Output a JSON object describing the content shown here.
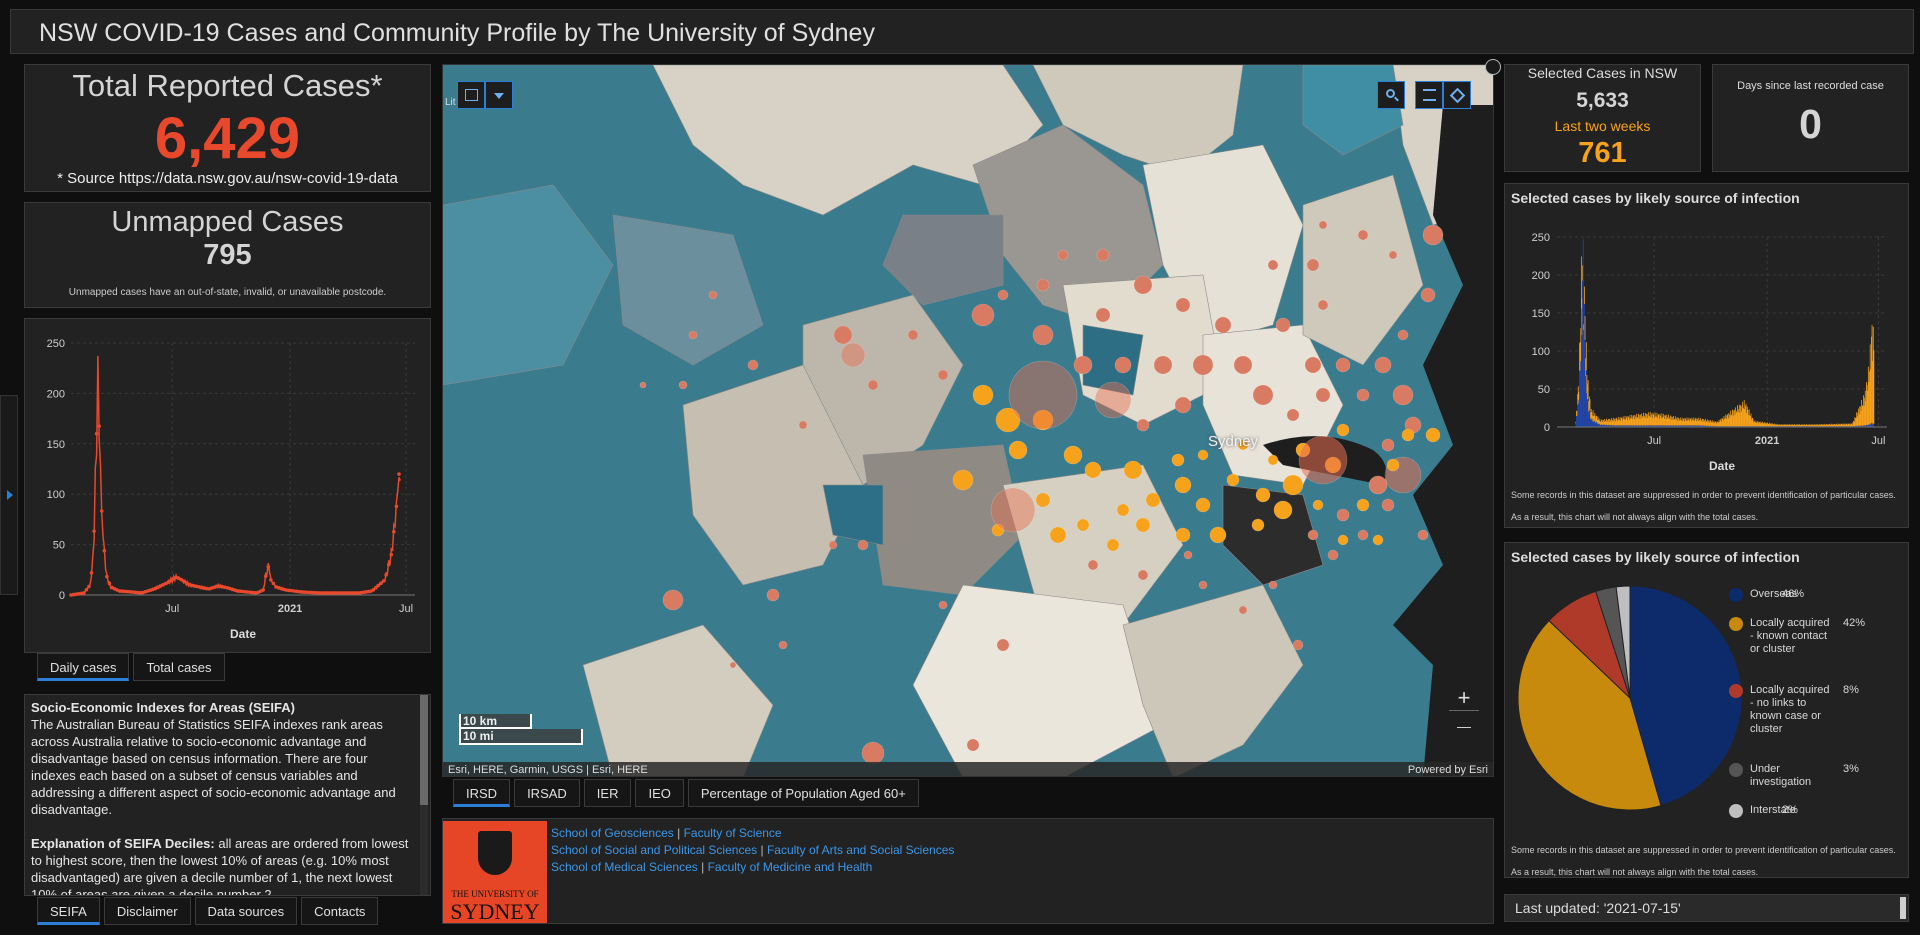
{
  "header": {
    "title": "NSW COVID-19 Cases and Community Profile by The University of Sydney"
  },
  "total": {
    "title": "Total Reported Cases*",
    "value": "6,429",
    "source": "* Source https://data.nsw.gov.au/nsw-covid-19-data"
  },
  "unmapped": {
    "title": "Unmapped Cases",
    "value": "795",
    "note": "Unmapped cases have an out-of-state, invalid, or unavailable postcode."
  },
  "colors": {
    "accent": "#e8492c",
    "orange": "#f7a21b",
    "blue": "#2b7fd6",
    "overseas": "#0d2a6b",
    "local_known": "#c88a0c",
    "local_unknown": "#b03a2a",
    "investigation": "#555555",
    "interstate": "#bfbfbf"
  },
  "left_tabs": {
    "daily": "Daily cases",
    "total": "Total cases"
  },
  "seifa": {
    "heading": "Socio-Economic Indexes for Areas (SEIFA)",
    "para1": "The Australian Bureau of Statistics SEIFA indexes rank areas across Australia relative to socio-economic advantage and disadvantage based on census information.  There are four indexes each based on a subset of census variables and addressing a different aspect of socio-economic advantage and disadvantage.",
    "para2_bold": "Explanation of SEIFA Deciles:",
    "para2": " all areas are ordered from lowest to highest score, then the lowest 10% of areas (e.g. 10% most disadvantaged) are given a decile number of 1, the next lowest 10% of areas are given a decile number 2"
  },
  "bottom_tabs": [
    "SEIFA",
    "Disclaimer",
    "Data sources",
    "Contacts"
  ],
  "map": {
    "place_label": "Sydney",
    "scale_km": "10 km",
    "scale_mi": "10 mi",
    "attribution": "Esri, HERE, Garmin, USGS | Esri, HERE",
    "powered": "Powered by Esri",
    "cut_label": "Lit",
    "zoom_in": "+",
    "zoom_out": "—",
    "icons": [
      "basemap-gallery-icon",
      "chevron-down-icon",
      "search-icon",
      "legend-icon",
      "layers-icon",
      "expand-icon"
    ]
  },
  "map_tabs": [
    "IRSD",
    "IRSAD",
    "IER",
    "IEO",
    "Percentage of Population Aged 60+"
  ],
  "usyd": {
    "logo_line1": "THE UNIVERSITY OF",
    "logo_line2": "SYDNEY",
    "links": [
      [
        "School of Geosciences",
        "Faculty of Science"
      ],
      [
        "School of Social and Political Sciences",
        "Faculty of Arts and Social Sciences"
      ],
      [
        "School of Medical Sciences",
        "Faculty of Medicine and Health"
      ]
    ]
  },
  "selected": {
    "title": "Selected Cases in NSW",
    "value": "5,633",
    "two_weeks_label": "Last two weeks",
    "two_weeks_value": "761"
  },
  "days_since": {
    "title": "Days since last recorded case",
    "value": "0"
  },
  "bar_panel": {
    "title": "Selected cases by likely source of infection",
    "note": "Some records in this dataset are suppressed in order to prevent identification of particular cases. As a result, this chart will not always align with the total cases."
  },
  "pie_panel": {
    "title": "Selected cases by likely source of infection",
    "note": "Some records in this dataset are suppressed in order to prevent identification of particular cases. As a result, this chart will not always align with the total cases."
  },
  "last_updated": "Last updated: '2021-07-15'",
  "chart_data": [
    {
      "type": "line",
      "title": "",
      "xlabel": "Date",
      "ylabel": "",
      "ylim": [
        0,
        250
      ],
      "yticks": [
        0,
        50,
        100,
        150,
        200,
        250
      ],
      "xticks": [
        "Jul",
        "2021",
        "Jul"
      ],
      "x_range": [
        "2020-01-25",
        "2021-07-15"
      ],
      "series": [
        {
          "values_sampled": [
            [
              0,
              0
            ],
            [
              20,
              2
            ],
            [
              30,
              10
            ],
            [
              35,
              40
            ],
            [
              38,
              110
            ],
            [
              40,
              160
            ],
            [
              41,
              200
            ],
            [
              42,
              213
            ],
            [
              43,
              185
            ],
            [
              45,
              150
            ],
            [
              47,
              95
            ],
            [
              50,
              60
            ],
            [
              55,
              20
            ],
            [
              62,
              8
            ],
            [
              75,
              4
            ],
            [
              95,
              3
            ],
            [
              110,
              2
            ],
            [
              130,
              6
            ],
            [
              150,
              12
            ],
            [
              165,
              18
            ],
            [
              175,
              14
            ],
            [
              185,
              10
            ],
            [
              200,
              8
            ],
            [
              215,
              6
            ],
            [
              230,
              9
            ],
            [
              245,
              7
            ],
            [
              260,
              4
            ],
            [
              275,
              3
            ],
            [
              290,
              2
            ],
            [
              300,
              5
            ],
            [
              305,
              22
            ],
            [
              309,
              30
            ],
            [
              312,
              15
            ],
            [
              320,
              8
            ],
            [
              335,
              5
            ],
            [
              360,
              3
            ],
            [
              390,
              2
            ],
            [
              420,
              2
            ],
            [
              450,
              2
            ],
            [
              470,
              4
            ],
            [
              490,
              15
            ],
            [
              500,
              40
            ],
            [
              507,
              80
            ],
            [
              512,
              120
            ],
            [
              515,
              100
            ]
          ]
        }
      ]
    },
    {
      "type": "bar",
      "title": "Selected cases by likely source of infection",
      "xlabel": "Date",
      "ylim": [
        0,
        250
      ],
      "yticks": [
        0,
        50,
        100,
        150,
        200,
        250
      ],
      "xticks": [
        "Jul",
        "2021",
        "Jul"
      ],
      "stacked": true,
      "series": [
        {
          "name": "Overseas"
        },
        {
          "name": "Locally acquired - known contact or cluster"
        }
      ],
      "values_sampled": [
        [
          30,
          5,
          2
        ],
        [
          35,
          40,
          20
        ],
        [
          38,
          100,
          50
        ],
        [
          40,
          150,
          60
        ],
        [
          41,
          190,
          20
        ],
        [
          42,
          210,
          0
        ],
        [
          43,
          170,
          10
        ],
        [
          45,
          110,
          30
        ],
        [
          47,
          60,
          30
        ],
        [
          50,
          30,
          20
        ],
        [
          55,
          10,
          10
        ],
        [
          70,
          3,
          5
        ],
        [
          95,
          2,
          8
        ],
        [
          130,
          2,
          12
        ],
        [
          150,
          2,
          14
        ],
        [
          175,
          2,
          12
        ],
        [
          200,
          2,
          8
        ],
        [
          230,
          2,
          8
        ],
        [
          260,
          1,
          5
        ],
        [
          305,
          1,
          28
        ],
        [
          320,
          1,
          6
        ],
        [
          360,
          1,
          2
        ],
        [
          420,
          1,
          2
        ],
        [
          480,
          1,
          3
        ],
        [
          500,
          2,
          35
        ],
        [
          507,
          3,
          65
        ],
        [
          512,
          5,
          115
        ],
        [
          515,
          4,
          100
        ]
      ]
    },
    {
      "type": "pie",
      "title": "Selected cases by likely source of infection",
      "slices": [
        {
          "label": "Overseas",
          "value": 46
        },
        {
          "label": "Locally acquired - known contact or cluster",
          "value": 42
        },
        {
          "label": "Locally acquired - no links to known case or cluster",
          "value": 8
        },
        {
          "label": "Under investigation",
          "value": 3
        },
        {
          "label": "Interstate",
          "value": 2
        }
      ],
      "legend_labels": [
        "Overseas",
        "Locally acquired - known contact or cluster",
        "Locally acquired - no links to known case or cluster",
        "Under investigation",
        "Interstate"
      ],
      "legend_pcts": [
        "46%",
        "42%",
        "8%",
        "3%",
        "2%"
      ]
    }
  ]
}
